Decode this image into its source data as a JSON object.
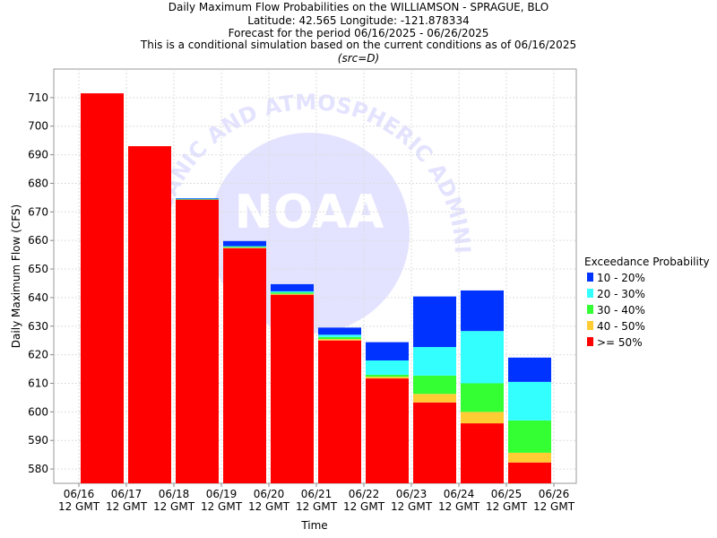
{
  "chart_data": {
    "type": "bar",
    "stacked": true,
    "title_lines": [
      "Daily Maximum Flow Probabilities on the WILLIAMSON - SPRAGUE, BLO",
      "Latitude: 42.565 Longitude: -121.878334",
      "Forecast for the period 06/16/2025 - 06/26/2025",
      "This is a conditional simulation based on the current conditions as of 06/16/2025"
    ],
    "subtitle": "(src=D)",
    "xlabel": "Time",
    "ylabel": "Daily Maximum Flow (CFS)",
    "ylim": [
      575,
      720
    ],
    "yticks": [
      580,
      590,
      600,
      610,
      620,
      630,
      640,
      650,
      660,
      670,
      680,
      690,
      700,
      710
    ],
    "grid": true,
    "xticks": [
      {
        "date": "06/16",
        "time": "12 GMT"
      },
      {
        "date": "06/17",
        "time": "12 GMT"
      },
      {
        "date": "06/18",
        "time": "12 GMT"
      },
      {
        "date": "06/19",
        "time": "12 GMT"
      },
      {
        "date": "06/20",
        "time": "12 GMT"
      },
      {
        "date": "06/21",
        "time": "12 GMT"
      },
      {
        "date": "06/22",
        "time": "12 GMT"
      },
      {
        "date": "06/23",
        "time": "12 GMT"
      },
      {
        "date": "06/24",
        "time": "12 GMT"
      },
      {
        "date": "06/25",
        "time": "12 GMT"
      },
      {
        "date": "06/26",
        "time": "12 GMT"
      }
    ],
    "legend": {
      "title": "Exceedance Probability",
      "placement": "right",
      "entries": [
        {
          "label": "10 - 20%",
          "color": "#0033ff"
        },
        {
          "label": "20 - 30%",
          "color": "#33ffff"
        },
        {
          "label": "30 - 40%",
          "color": "#33ff33"
        },
        {
          "label": "40 - 50%",
          "color": "#ffcc33"
        },
        {
          "label": ">= 50%",
          "color": "#ff0000"
        }
      ]
    },
    "bars": [
      {
        "day": "06/16",
        "ge50": 711.5,
        "p40_50": 711.5,
        "p30_40": 711.5,
        "p20_30": 711.5,
        "p10_20": 711.5
      },
      {
        "day": "06/17",
        "ge50": 693.0,
        "p40_50": 693.0,
        "p30_40": 693.0,
        "p20_30": 693.0,
        "p10_20": 693.0
      },
      {
        "day": "06/18",
        "ge50": 674.3,
        "p40_50": 674.3,
        "p30_40": 674.5,
        "p20_30": 674.6,
        "p10_20": 674.8
      },
      {
        "day": "06/19",
        "ge50": 657.3,
        "p40_50": 657.5,
        "p30_40": 657.8,
        "p20_30": 658.0,
        "p10_20": 659.8
      },
      {
        "day": "06/20",
        "ge50": 641.0,
        "p40_50": 641.3,
        "p30_40": 641.8,
        "p20_30": 642.2,
        "p10_20": 644.7
      },
      {
        "day": "06/21",
        "ge50": 625.0,
        "p40_50": 625.5,
        "p30_40": 626.2,
        "p20_30": 627.0,
        "p10_20": 629.5
      },
      {
        "day": "06/22",
        "ge50": 611.7,
        "p40_50": 612.3,
        "p30_40": 613.0,
        "p20_30": 618.0,
        "p10_20": 624.4
      },
      {
        "day": "06/23",
        "ge50": 603.3,
        "p40_50": 606.3,
        "p30_40": 612.7,
        "p20_30": 622.7,
        "p10_20": 640.4
      },
      {
        "day": "06/24",
        "ge50": 596.0,
        "p40_50": 600.0,
        "p30_40": 610.0,
        "p20_30": 628.3,
        "p10_20": 642.5
      },
      {
        "day": "06/25",
        "ge50": 582.3,
        "p40_50": 585.7,
        "p30_40": 597.0,
        "p20_30": 610.5,
        "p10_20": 619.0
      }
    ],
    "watermark": {
      "text": "NOAA",
      "arc_text": "NATIONAL OCEANIC AND ATMOSPHERIC ADMINISTRATION",
      "color": "#e3e3ff"
    }
  }
}
